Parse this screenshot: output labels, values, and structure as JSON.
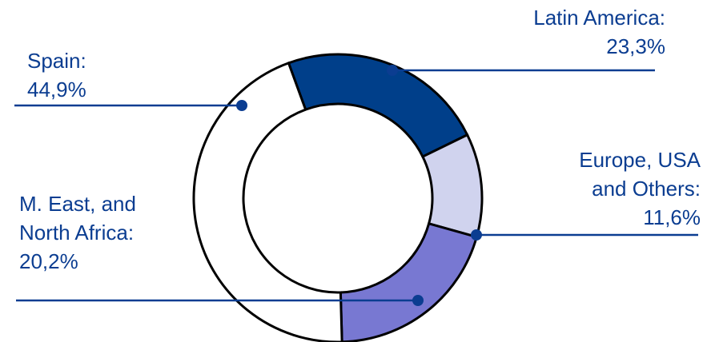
{
  "chart_data": {
    "type": "donut",
    "title": "",
    "colors": {
      "Spain": "#ffffff",
      "Latin America": "#003f8a",
      "Europe, USA and Others": "#d0d3ee",
      "M. East, and North Africa": "#7878d2",
      "outline": "#000000",
      "label_line": "#0b3d91"
    },
    "slices": [
      {
        "name": "Latin America",
        "value": 23.3,
        "label_lines": [
          "Latin America:",
          "23,3%"
        ]
      },
      {
        "name": "Europe, USA and Others",
        "value": 11.6,
        "label_lines": [
          "Europe, USA",
          "and Others:",
          "11,6%"
        ]
      },
      {
        "name": "M. East, and North Africa",
        "value": 20.2,
        "label_lines": [
          "M. East, and",
          "North Africa:",
          "20,2%"
        ]
      },
      {
        "name": "Spain",
        "value": 44.9,
        "label_lines": [
          "Spain:",
          "44,9%"
        ]
      }
    ]
  }
}
